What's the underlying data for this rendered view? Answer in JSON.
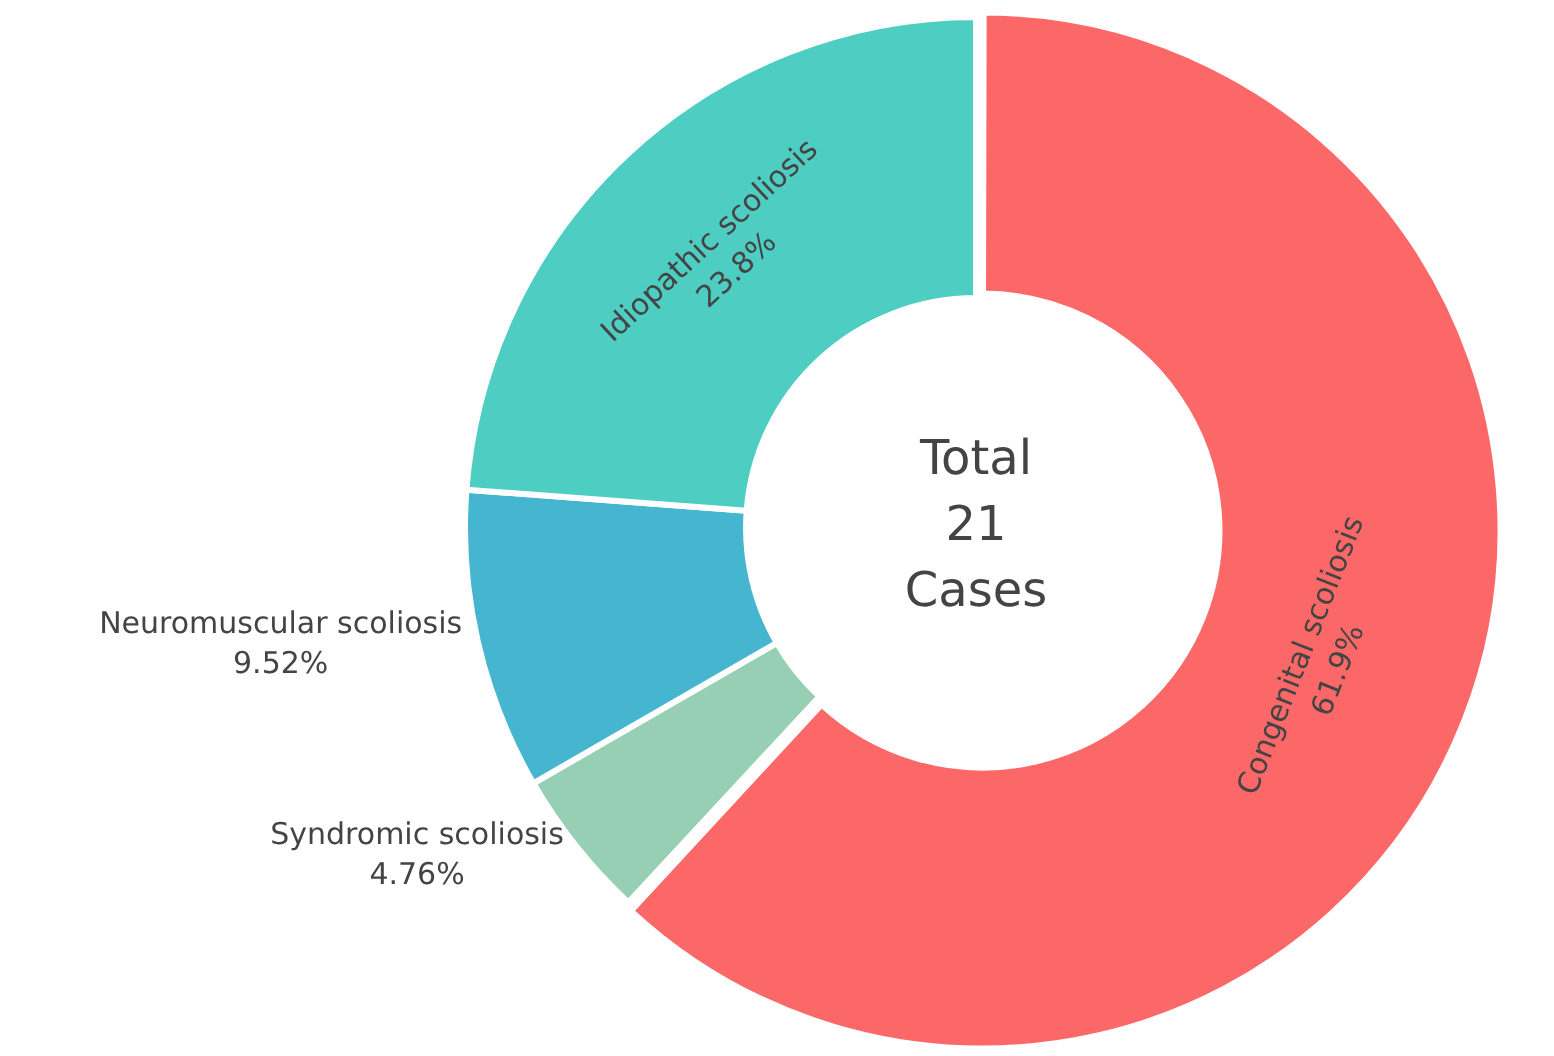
{
  "chart_data": {
    "type": "donut",
    "categories": [
      "Congenital scoliosis",
      "Syndromic scoliosis",
      "Neuromuscular scoliosis",
      "Idiopathic scoliosis"
    ],
    "values": [
      61.9,
      4.76,
      9.52,
      23.8
    ],
    "colors": [
      "#fc6868",
      "#97cfb4",
      "#46b6d0",
      "#4ecdc2"
    ],
    "value_labels": [
      "61.9%",
      "4.76%",
      "9.52%",
      "23.8%"
    ],
    "legend": false,
    "annotations": [
      "Total\n21\nCases"
    ]
  }
}
